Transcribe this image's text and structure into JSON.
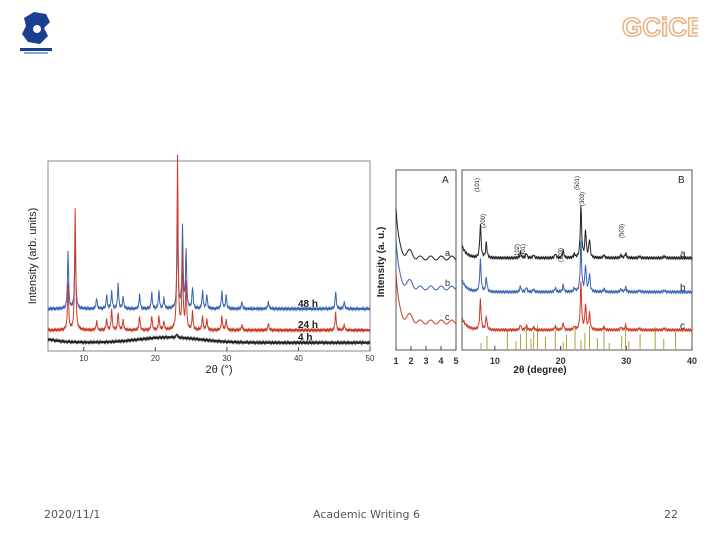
{
  "slide": {
    "date": "2020/11/1",
    "course": "Academic Writing 6",
    "page": "22",
    "logo_right_text": "GCiCE"
  },
  "colors": {
    "black": "#222222",
    "red": "#cc3b2a",
    "blue": "#3a62b4",
    "olive": "#aaa23a"
  },
  "chart_data": [
    {
      "type": "line",
      "xlabel": "2θ (°)",
      "ylabel": "Intensity (arb. units)",
      "xlim": [
        5,
        50
      ],
      "xticks": [
        10,
        20,
        30,
        40,
        50
      ],
      "series": [
        {
          "name": "48 h",
          "color": "#3a62b4",
          "offset": 0.22,
          "peaks": [
            [
              7.8,
              0.32
            ],
            [
              8.8,
              0.42
            ],
            [
              11.8,
              0.06
            ],
            [
              13.2,
              0.08
            ],
            [
              13.9,
              0.1
            ],
            [
              14.8,
              0.14
            ],
            [
              15.5,
              0.07
            ],
            [
              17.8,
              0.08
            ],
            [
              19.5,
              0.09
            ],
            [
              20.5,
              0.1
            ],
            [
              21.2,
              0.06
            ],
            [
              23.1,
              0.55
            ],
            [
              23.8,
              0.46
            ],
            [
              24.3,
              0.32
            ],
            [
              25.2,
              0.12
            ],
            [
              26.6,
              0.1
            ],
            [
              27.2,
              0.08
            ],
            [
              29.3,
              0.1
            ],
            [
              29.9,
              0.08
            ],
            [
              32.1,
              0.04
            ],
            [
              35.8,
              0.04
            ],
            [
              45.2,
              0.1
            ],
            [
              46.4,
              0.04
            ]
          ]
        },
        {
          "name": "24 h",
          "color": "#cc3b2a",
          "offset": 0.1,
          "peaks": [
            [
              7.8,
              0.26
            ],
            [
              8.8,
              0.68
            ],
            [
              11.8,
              0.05
            ],
            [
              13.2,
              0.06
            ],
            [
              13.9,
              0.12
            ],
            [
              14.8,
              0.1
            ],
            [
              15.5,
              0.06
            ],
            [
              17.8,
              0.08
            ],
            [
              19.5,
              0.08
            ],
            [
              20.5,
              0.08
            ],
            [
              21.2,
              0.05
            ],
            [
              23.1,
              0.98
            ],
            [
              23.8,
              0.42
            ],
            [
              24.3,
              0.26
            ],
            [
              25.2,
              0.1
            ],
            [
              26.6,
              0.08
            ],
            [
              27.2,
              0.06
            ],
            [
              29.3,
              0.08
            ],
            [
              29.9,
              0.06
            ],
            [
              32.1,
              0.03
            ],
            [
              35.8,
              0.04
            ],
            [
              45.2,
              0.1
            ],
            [
              46.4,
              0.03
            ]
          ]
        },
        {
          "name": "4 h",
          "color": "#222222",
          "offset": 0.03,
          "amorphous": true,
          "peaks": [
            [
              23.0,
              0.02
            ]
          ]
        }
      ]
    },
    {
      "type": "line",
      "panel_label": "A",
      "xlim": [
        1,
        5
      ],
      "xticks": [
        1,
        2,
        3,
        4,
        5
      ],
      "ylabel": "Intensity (a. u.)",
      "series": [
        {
          "name": "a",
          "color": "#222222"
        },
        {
          "name": "b",
          "color": "#3a62b4"
        },
        {
          "name": "c",
          "color": "#cc3b2a"
        }
      ]
    },
    {
      "type": "line",
      "panel_label": "B",
      "xlabel": "2θ (degree)",
      "xlim": [
        5,
        40
      ],
      "xticks": [
        10,
        20,
        30,
        40
      ],
      "series": [
        {
          "name": "a",
          "color": "#222222"
        },
        {
          "name": "b",
          "color": "#3a62b4"
        },
        {
          "name": "c",
          "color": "#cc3b2a"
        }
      ],
      "peaks": [
        [
          7.8,
          0.55
        ],
        [
          8.7,
          0.25
        ],
        [
          13.9,
          0.1
        ],
        [
          14.8,
          0.08
        ],
        [
          15.9,
          0.05
        ],
        [
          19.2,
          0.07
        ],
        [
          20.4,
          0.12
        ],
        [
          22.1,
          0.06
        ],
        [
          23.1,
          0.85
        ],
        [
          23.8,
          0.45
        ],
        [
          24.4,
          0.3
        ],
        [
          26.6,
          0.05
        ],
        [
          29.2,
          0.05
        ],
        [
          29.9,
          0.08
        ],
        [
          32.0,
          0.03
        ],
        [
          35.8,
          0.03
        ]
      ],
      "reference_sticks": [
        7.9,
        8.8,
        11.9,
        13.2,
        13.9,
        14.8,
        15.5,
        15.9,
        16.5,
        17.7,
        19.2,
        20.4,
        20.9,
        22.2,
        23.1,
        23.7,
        24.4,
        25.6,
        26.6,
        27.4,
        29.3,
        29.9,
        30.4,
        32.1,
        34.4,
        35.7,
        37.5
      ],
      "annotations": [
        {
          "text": "(101)",
          "x": 7.9
        },
        {
          "text": "(200)",
          "x": 8.8
        },
        {
          "text": "(102)",
          "x": 14.0
        },
        {
          "text": "(301)",
          "x": 14.9
        },
        {
          "text": "(103)",
          "x": 20.6
        },
        {
          "text": "(501)",
          "x": 23.1
        },
        {
          "text": "(303)",
          "x": 23.9
        },
        {
          "text": "(503)",
          "x": 29.9
        }
      ]
    }
  ]
}
